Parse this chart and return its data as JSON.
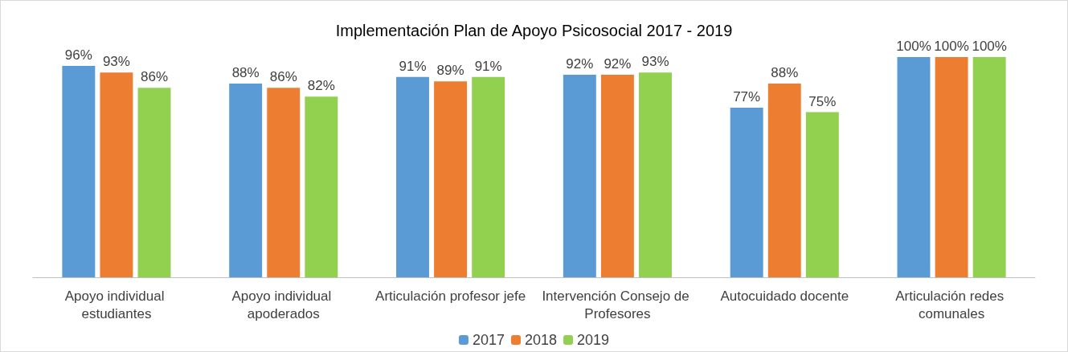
{
  "chart_data": {
    "type": "bar",
    "title": "Implementación Plan de Apoyo Psicosocial 2017 - 2019",
    "categories": [
      "Apoyo individual estudiantes",
      "Apoyo individual apoderados",
      "Articulación profesor jefe",
      "Intervención Consejo de Profesores",
      "Autocuidado docente",
      "Articulación redes comunales"
    ],
    "series": [
      {
        "name": "2017",
        "color": "#5b9bd5",
        "values": [
          96,
          88,
          91,
          92,
          77,
          100
        ],
        "value_labels": [
          "96%",
          "88%",
          "91%",
          "92%",
          "77%",
          "100%"
        ]
      },
      {
        "name": "2018",
        "color": "#ed7d31",
        "values": [
          93,
          86,
          89,
          92,
          88,
          100
        ],
        "value_labels": [
          "93%",
          "86%",
          "89%",
          "92%",
          "88%",
          "100%"
        ]
      },
      {
        "name": "2019",
        "color": "#92d050",
        "values": [
          86,
          82,
          91,
          93,
          75,
          100
        ],
        "value_labels": [
          "86%",
          "82%",
          "91%",
          "93%",
          "75%",
          "100%"
        ]
      }
    ],
    "legend": "bottom"
  }
}
